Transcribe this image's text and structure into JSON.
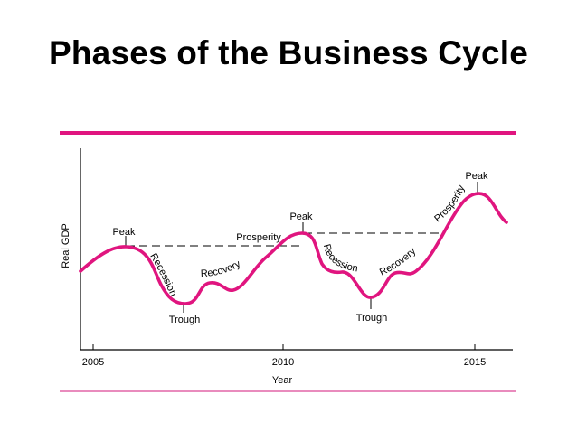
{
  "title": "Phases of the Business Cycle",
  "colors": {
    "accent": "#e0157f",
    "accent_light": "#e98bbd",
    "text": "#000000",
    "axis": "#000000"
  },
  "diagram": {
    "y_axis_label": "Real GDP",
    "x_axis_label": "Year",
    "x_ticks": [
      "2005",
      "2010",
      "2015"
    ],
    "labels": {
      "peak_1": "Peak",
      "recession_1": "Recession",
      "trough_1": "Trough",
      "recovery_1": "Recovery",
      "prosperity_1": "Prosperity",
      "peak_2": "Peak",
      "recession_2": "Recession",
      "trough_2": "Trough",
      "recovery_2": "Recovery",
      "prosperity_2": "Prosperity",
      "peak_3": "Peak"
    }
  }
}
